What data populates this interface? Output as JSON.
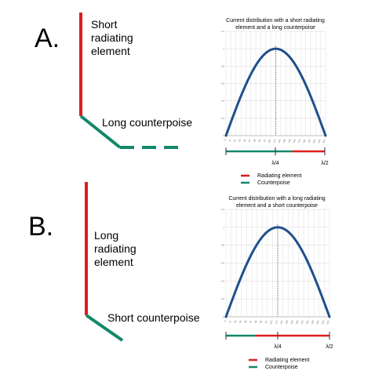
{
  "colors": {
    "radiating": "#dd1e1e",
    "counterpoise": "#14876a",
    "curve": "#1f4f8c",
    "grid": "#d6d6d6",
    "text": "#111111"
  },
  "panels": [
    {
      "letter": "A.",
      "element_label_lines": [
        "Short",
        "radiating",
        "element"
      ],
      "counterpoise_label": "Long counterpoise",
      "marker_mid": "λ/4",
      "marker_end": "λ/2",
      "radiating_fraction": 0.33,
      "legend": [
        "Radiating element",
        "Counterpoise"
      ]
    },
    {
      "letter": "B.",
      "element_label_lines": [
        "Long",
        "radiating",
        "element"
      ],
      "counterpoise_label": "Short counterpoise",
      "marker_mid": "λ/4",
      "marker_end": "λ/2",
      "radiating_fraction": 0.72,
      "legend": [
        "Radiating element",
        "Counterpoise"
      ]
    }
  ],
  "chart_data": [
    {
      "type": "line",
      "title": "Current distribution with a short radiating element and a long counterpoise",
      "title_lines": [
        "Current distribution with a short radiating",
        "element and a long counterpoise"
      ],
      "x": [
        0,
        0.1,
        0.2,
        0.3,
        0.4,
        0.5,
        0.6,
        0.7,
        0.8,
        0.9,
        1.0
      ],
      "series": [
        {
          "values": [
            0,
            0.309,
            0.588,
            0.809,
            0.951,
            1.0,
            0.951,
            0.809,
            0.588,
            0.309,
            0
          ]
        }
      ],
      "ylim": [
        0,
        1.2
      ],
      "yticks": [
        "1.2",
        "1",
        "0.8",
        "0.6",
        "0.4",
        "0.2",
        "0"
      ],
      "xticks": [
        "0",
        "11",
        "23",
        "34",
        "46",
        "57",
        "68",
        "80",
        "91",
        "102",
        "114",
        "125",
        "136",
        "148",
        "159",
        "170",
        "182",
        "193",
        "204",
        "216",
        "227"
      ],
      "grid": true
    },
    {
      "type": "line",
      "title": "Current distribution with a long radiating element and a short counterpoise",
      "title_lines": [
        "Current distribution with a long radiating",
        "element and a short counterpoise"
      ],
      "x": [
        0,
        0.1,
        0.2,
        0.3,
        0.4,
        0.5,
        0.6,
        0.7,
        0.8,
        0.9,
        1.0
      ],
      "series": [
        {
          "values": [
            0,
            0.309,
            0.588,
            0.809,
            0.951,
            1.0,
            0.951,
            0.809,
            0.588,
            0.309,
            0
          ]
        }
      ],
      "ylim": [
        0,
        1.2
      ],
      "yticks": [
        "1.2",
        "1",
        "0.8",
        "0.6",
        "0.4",
        "0.2",
        "0"
      ],
      "xticks": [
        "0",
        "11",
        "23",
        "34",
        "46",
        "57",
        "68",
        "80",
        "91",
        "102",
        "114",
        "125",
        "136",
        "148",
        "159",
        "170",
        "182",
        "193",
        "204",
        "216",
        "227"
      ],
      "grid": true
    }
  ]
}
